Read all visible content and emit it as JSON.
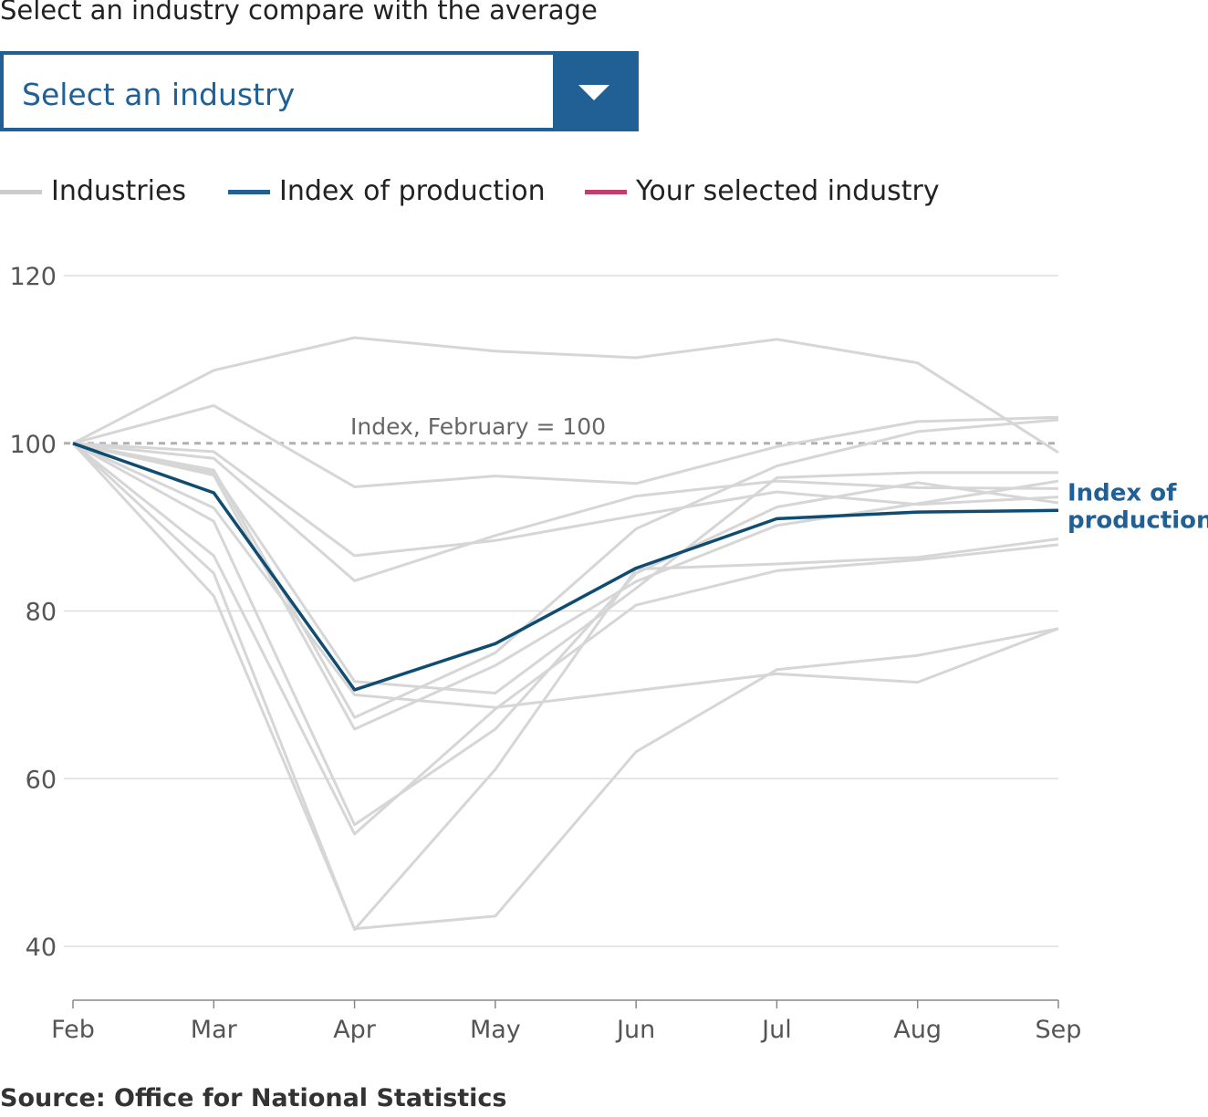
{
  "prompt": "Select an industry compare with the average",
  "select": {
    "value": "Select an industry",
    "icon": "chevron-down-icon"
  },
  "legend": [
    {
      "label": "Industries",
      "color": "#cccccc"
    },
    {
      "label": "Index of production",
      "color": "#206095"
    },
    {
      "label": "Your selected industry",
      "color": "#c03f6b"
    }
  ],
  "source": "Source: Office for National Statistics",
  "chart_data": {
    "type": "line",
    "x": [
      "Feb",
      "Mar",
      "Apr",
      "May",
      "Jun",
      "Jul",
      "Aug",
      "Sep"
    ],
    "ylim": [
      40,
      120
    ],
    "yticks": [
      40,
      60,
      80,
      100,
      120
    ],
    "grid": true,
    "reference_line": {
      "value": 100,
      "label": "Index, February = 100"
    },
    "highlight": {
      "name": "Index of production",
      "end_label_lines": [
        "Index of",
        "production"
      ],
      "color": "#206095",
      "values": [
        100,
        94.1,
        70.6,
        76.1,
        85.1,
        91.0,
        91.8,
        92.0
      ]
    },
    "series": [
      {
        "values": [
          100,
          108.7,
          112.6,
          111.0,
          110.2,
          112.4,
          109.6,
          98.9
        ]
      },
      {
        "values": [
          100,
          104.5,
          94.8,
          96.1,
          95.2,
          99.6,
          102.6,
          103.1
        ]
      },
      {
        "values": [
          100,
          99.0,
          86.6,
          88.4,
          91.4,
          94.2,
          92.7,
          93.6
        ]
      },
      {
        "values": [
          100,
          98.2,
          83.6,
          89.0,
          93.7,
          95.5,
          94.7,
          94.6
        ]
      },
      {
        "values": [
          100,
          96.5,
          71.6,
          70.2,
          82.7,
          95.9,
          96.5,
          96.5
        ]
      },
      {
        "values": [
          100,
          96.8,
          67.3,
          75.0,
          89.8,
          97.3,
          101.4,
          102.8
        ]
      },
      {
        "values": [
          100,
          96.2,
          65.9,
          73.5,
          83.5,
          90.2,
          92.8,
          95.5
        ]
      },
      {
        "values": [
          100,
          92.3,
          70.0,
          68.5,
          70.5,
          72.5,
          71.5,
          77.9
        ]
      },
      {
        "values": [
          100,
          90.7,
          54.5,
          65.9,
          84.5,
          92.4,
          95.3,
          92.9
        ]
      },
      {
        "values": [
          100,
          86.6,
          53.4,
          68.3,
          80.7,
          84.8,
          86.1,
          87.9
        ]
      },
      {
        "values": [
          100,
          84.5,
          42.0,
          61.1,
          85.0,
          85.6,
          86.4,
          88.6
        ]
      },
      {
        "values": [
          100,
          81.8,
          42.1,
          43.6,
          63.2,
          73.0,
          74.7,
          77.9
        ]
      }
    ]
  }
}
